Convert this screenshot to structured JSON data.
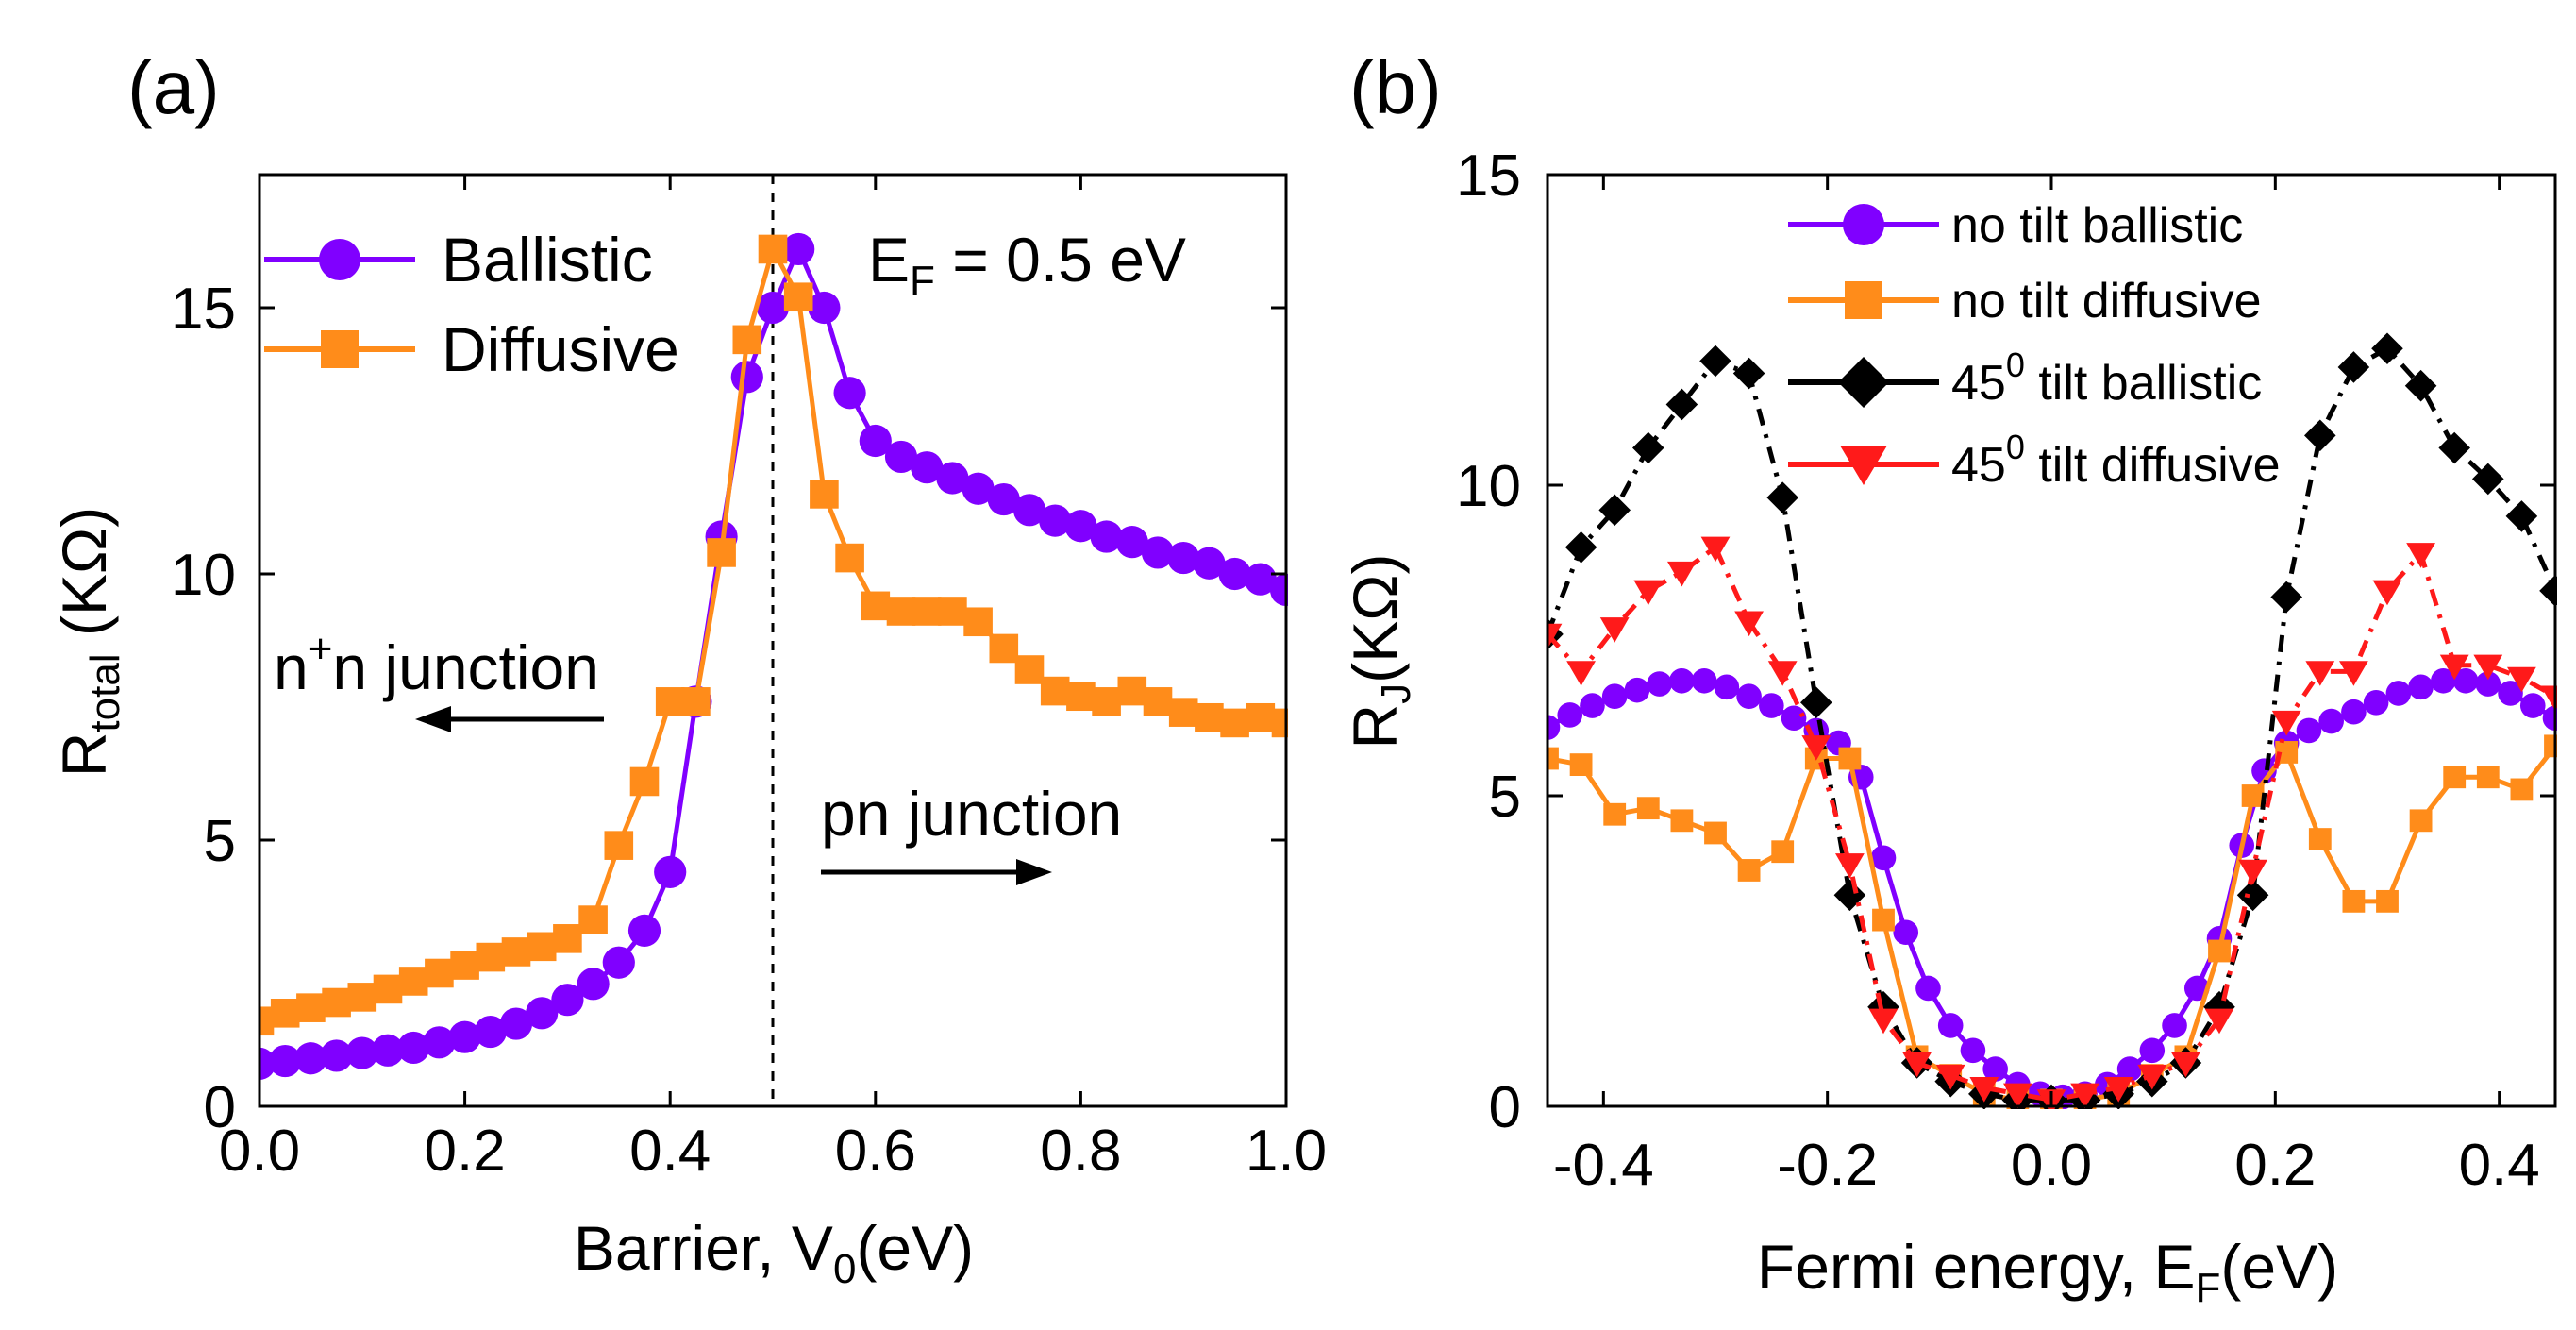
{
  "chart_data": [
    {
      "type": "line",
      "panel_label": "(a)",
      "xlabel_main": "Barrier, V",
      "xlabel_sub": "0",
      "xlabel_tail": "(eV)",
      "ylabel_main": "R",
      "ylabel_sub": "total",
      "ylabel_tail": " (KΩ)",
      "xlim": [
        0,
        1
      ],
      "ylim": [
        0,
        17.5
      ],
      "xticks": [
        0.0,
        0.2,
        0.4,
        0.6,
        0.8,
        1.0
      ],
      "xtick_labels": [
        "0.0",
        "0.2",
        "0.4",
        "0.6",
        "0.8",
        "1.0"
      ],
      "yticks": [
        0,
        5,
        10,
        15
      ],
      "ytick_labels": [
        "0",
        "5",
        "10",
        "15"
      ],
      "vline_x": 0.5,
      "annotations": {
        "ef_main": "E",
        "ef_sub": "F",
        "ef_tail": " = 0.5 eV",
        "nn_main": "n",
        "nn_sup": "+",
        "nn_tail": "n junction",
        "pn": "pn junction"
      },
      "series": [
        {
          "name": "Ballistic",
          "color": "#8000ff",
          "marker": "circle",
          "x": [
            0.0,
            0.025,
            0.05,
            0.075,
            0.1,
            0.125,
            0.15,
            0.175,
            0.2,
            0.225,
            0.25,
            0.275,
            0.3,
            0.325,
            0.35,
            0.375,
            0.4,
            0.425,
            0.45,
            0.475,
            0.5,
            0.525,
            0.55,
            0.575,
            0.6,
            0.625,
            0.65,
            0.675,
            0.7,
            0.725,
            0.75,
            0.775,
            0.8,
            0.825,
            0.85,
            0.875,
            0.9,
            0.925,
            0.95,
            0.975,
            1.0
          ],
          "values": [
            0.8,
            0.85,
            0.9,
            0.95,
            1.0,
            1.05,
            1.1,
            1.2,
            1.3,
            1.4,
            1.55,
            1.75,
            2.0,
            2.3,
            2.7,
            3.3,
            4.4,
            7.6,
            10.7,
            13.7,
            15.0,
            16.1,
            15.0,
            13.4,
            12.5,
            12.2,
            12.0,
            11.8,
            11.6,
            11.4,
            11.2,
            11.0,
            10.9,
            10.7,
            10.6,
            10.4,
            10.3,
            10.2,
            10.0,
            9.9,
            9.7
          ]
        },
        {
          "name": "Diffusive",
          "color": "#ff8c1a",
          "marker": "square",
          "x": [
            0.0,
            0.025,
            0.05,
            0.075,
            0.1,
            0.125,
            0.15,
            0.175,
            0.2,
            0.225,
            0.25,
            0.275,
            0.3,
            0.325,
            0.35,
            0.375,
            0.4,
            0.425,
            0.45,
            0.475,
            0.5,
            0.525,
            0.55,
            0.575,
            0.6,
            0.625,
            0.65,
            0.675,
            0.7,
            0.725,
            0.75,
            0.775,
            0.8,
            0.825,
            0.85,
            0.875,
            0.9,
            0.925,
            0.95,
            0.975,
            1.0
          ],
          "values": [
            1.6,
            1.75,
            1.85,
            1.95,
            2.05,
            2.2,
            2.35,
            2.5,
            2.65,
            2.8,
            2.9,
            3.0,
            3.15,
            3.5,
            4.9,
            6.1,
            7.6,
            7.6,
            10.4,
            14.4,
            16.1,
            15.2,
            11.5,
            10.3,
            9.4,
            9.3,
            9.3,
            9.3,
            9.1,
            8.6,
            8.2,
            7.8,
            7.7,
            7.6,
            7.8,
            7.6,
            7.4,
            7.3,
            7.2,
            7.3,
            7.2
          ]
        }
      ]
    },
    {
      "type": "line",
      "panel_label": "(b)",
      "xlabel_main": "Fermi energy, E",
      "xlabel_sub": "F",
      "xlabel_tail": "(eV)",
      "ylabel_main": "R",
      "ylabel_sub": "J",
      "ylabel_tail": "(KΩ)",
      "xlim": [
        -0.45,
        0.45
      ],
      "ylim": [
        0,
        15
      ],
      "xticks": [
        -0.4,
        -0.2,
        0.0,
        0.2,
        0.4
      ],
      "xtick_labels": [
        "-0.4",
        "-0.2",
        "0.0",
        "0.2",
        "0.4"
      ],
      "yticks": [
        0,
        5,
        10,
        15
      ],
      "ytick_labels": [
        "0",
        "5",
        "10",
        "15"
      ],
      "series": [
        {
          "name": "no tilt ballistic",
          "legend_main": "no tilt ballistic",
          "legend_sup": "",
          "legend_tail": "",
          "color": "#8000ff",
          "marker": "circle",
          "dash": "none",
          "x": [
            -0.45,
            -0.43,
            -0.41,
            -0.39,
            -0.37,
            -0.35,
            -0.33,
            -0.31,
            -0.29,
            -0.27,
            -0.25,
            -0.23,
            -0.21,
            -0.19,
            -0.17,
            -0.15,
            -0.13,
            -0.11,
            -0.09,
            -0.07,
            -0.05,
            -0.03,
            -0.01,
            0.01,
            0.03,
            0.05,
            0.07,
            0.09,
            0.11,
            0.13,
            0.15,
            0.17,
            0.19,
            0.21,
            0.23,
            0.25,
            0.27,
            0.29,
            0.31,
            0.33,
            0.35,
            0.37,
            0.39,
            0.41,
            0.43,
            0.45
          ],
          "values": [
            6.1,
            6.3,
            6.45,
            6.6,
            6.7,
            6.8,
            6.85,
            6.85,
            6.75,
            6.6,
            6.45,
            6.25,
            6.05,
            5.85,
            5.3,
            4.0,
            2.8,
            1.9,
            1.3,
            0.9,
            0.6,
            0.35,
            0.2,
            0.15,
            0.2,
            0.35,
            0.6,
            0.9,
            1.3,
            1.9,
            2.7,
            4.2,
            5.4,
            5.85,
            6.05,
            6.2,
            6.35,
            6.5,
            6.65,
            6.75,
            6.85,
            6.85,
            6.8,
            6.65,
            6.45,
            6.25
          ]
        },
        {
          "name": "no tilt diffusive",
          "legend_main": "no tilt diffusive",
          "legend_sup": "",
          "legend_tail": "",
          "color": "#ff8c1a",
          "marker": "square",
          "dash": "none",
          "x": [
            -0.45,
            -0.42,
            -0.39,
            -0.36,
            -0.33,
            -0.3,
            -0.27,
            -0.24,
            -0.21,
            -0.18,
            -0.15,
            -0.12,
            -0.09,
            -0.06,
            -0.03,
            0.0,
            0.03,
            0.06,
            0.09,
            0.12,
            0.15,
            0.18,
            0.21,
            0.24,
            0.27,
            0.3,
            0.33,
            0.36,
            0.39,
            0.42,
            0.45
          ],
          "values": [
            5.6,
            5.5,
            4.7,
            4.8,
            4.6,
            4.4,
            3.8,
            4.1,
            5.6,
            5.6,
            3.0,
            0.8,
            0.5,
            0.2,
            0.1,
            0.1,
            0.1,
            0.2,
            0.5,
            0.8,
            2.5,
            5.0,
            5.7,
            4.3,
            3.3,
            3.3,
            4.6,
            5.3,
            5.3,
            5.1,
            5.8
          ]
        },
        {
          "name": "45 tilt ballistic",
          "legend_main": "45",
          "legend_sup": "0",
          "legend_tail": " tilt ballistic",
          "color": "#000000",
          "marker": "diamond",
          "dash": "18 10 4 10",
          "x": [
            -0.45,
            -0.42,
            -0.39,
            -0.36,
            -0.33,
            -0.3,
            -0.27,
            -0.24,
            -0.21,
            -0.18,
            -0.15,
            -0.12,
            -0.09,
            -0.06,
            -0.03,
            0.0,
            0.03,
            0.06,
            0.09,
            0.12,
            0.15,
            0.18,
            0.21,
            0.24,
            0.27,
            0.3,
            0.33,
            0.36,
            0.39,
            0.42,
            0.45
          ],
          "values": [
            7.6,
            9.0,
            9.6,
            10.6,
            11.3,
            12.0,
            11.8,
            9.8,
            6.5,
            3.4,
            1.6,
            0.7,
            0.4,
            0.2,
            0.1,
            0.1,
            0.1,
            0.2,
            0.4,
            0.7,
            1.6,
            3.4,
            8.2,
            10.8,
            11.9,
            12.2,
            11.6,
            10.6,
            10.1,
            9.5,
            8.3
          ]
        },
        {
          "name": "45 tilt diffusive",
          "legend_main": "45",
          "legend_sup": "0",
          "legend_tail": " tilt diffusive",
          "color": "#ff1a1a",
          "marker": "triangle-down",
          "dash": "18 10 4 10",
          "x": [
            -0.45,
            -0.42,
            -0.39,
            -0.36,
            -0.33,
            -0.3,
            -0.27,
            -0.24,
            -0.21,
            -0.18,
            -0.15,
            -0.12,
            -0.09,
            -0.06,
            -0.03,
            0.0,
            0.03,
            0.06,
            0.09,
            0.12,
            0.15,
            0.18,
            0.21,
            0.24,
            0.27,
            0.3,
            0.33,
            0.36,
            0.39,
            0.42,
            0.45
          ],
          "values": [
            7.6,
            7.0,
            7.7,
            8.3,
            8.6,
            9.0,
            7.8,
            7.0,
            5.8,
            3.9,
            1.4,
            0.7,
            0.5,
            0.3,
            0.2,
            0.1,
            0.2,
            0.3,
            0.5,
            0.7,
            1.4,
            3.8,
            6.2,
            7.0,
            7.0,
            8.3,
            8.9,
            7.1,
            7.1,
            6.9,
            6.6
          ]
        }
      ]
    }
  ]
}
